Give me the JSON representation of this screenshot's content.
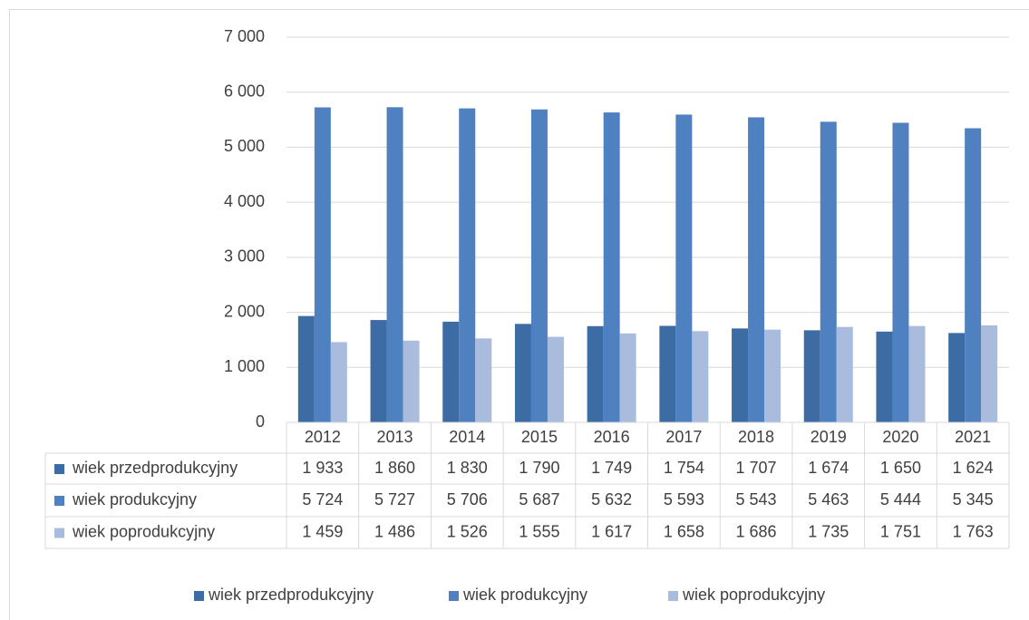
{
  "chart_data": {
    "type": "bar",
    "categories": [
      "2012",
      "2013",
      "2014",
      "2015",
      "2016",
      "2017",
      "2018",
      "2019",
      "2020",
      "2021"
    ],
    "series": [
      {
        "name": "wiek przedprodukcyjny",
        "color": "#3d6ba3",
        "values": [
          1933,
          1860,
          1830,
          1790,
          1749,
          1754,
          1707,
          1674,
          1650,
          1624
        ],
        "value_labels": [
          "1 933",
          "1 860",
          "1 830",
          "1 790",
          "1 749",
          "1 754",
          "1 707",
          "1 674",
          "1 650",
          "1 624"
        ]
      },
      {
        "name": "wiek produkcyjny",
        "color": "#4f81c1",
        "values": [
          5724,
          5727,
          5706,
          5687,
          5632,
          5593,
          5543,
          5463,
          5444,
          5345
        ],
        "value_labels": [
          "5 724",
          "5 727",
          "5 706",
          "5 687",
          "5 632",
          "5 593",
          "5 543",
          "5 463",
          "5 444",
          "5 345"
        ]
      },
      {
        "name": "wiek poprodukcyjny",
        "color": "#a9bcdd",
        "values": [
          1459,
          1486,
          1526,
          1555,
          1617,
          1658,
          1686,
          1735,
          1751,
          1763
        ],
        "value_labels": [
          "1 459",
          "1 486",
          "1 526",
          "1 555",
          "1 617",
          "1 658",
          "1 686",
          "1 735",
          "1 751",
          "1 763"
        ]
      }
    ],
    "ylim": [
      0,
      7000
    ],
    "yticks": [
      {
        "value": 0,
        "label": "0"
      },
      {
        "value": 1000,
        "label": "1 000"
      },
      {
        "value": 2000,
        "label": "2 000"
      },
      {
        "value": 3000,
        "label": "3 000"
      },
      {
        "value": 4000,
        "label": "4 000"
      },
      {
        "value": 5000,
        "label": "5 000"
      },
      {
        "value": 6000,
        "label": "6 000"
      },
      {
        "value": 7000,
        "label": "7 000"
      }
    ],
    "grid": true,
    "legend": "bottom"
  }
}
